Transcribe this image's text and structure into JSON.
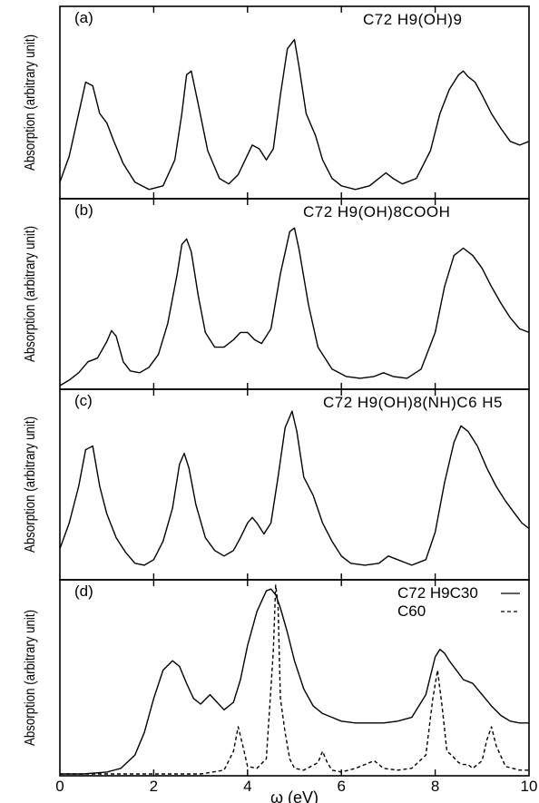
{
  "chart_data": [
    {
      "panel": "(a)",
      "type": "line",
      "title": "C72 H9(OH)9",
      "ylabel": "Absorption (arbitrary unit)",
      "xlim": [
        0,
        10
      ],
      "ylim": [
        0,
        1
      ],
      "series": [
        {
          "style": "solid",
          "x": [
            0.0,
            0.2,
            0.4,
            0.55,
            0.7,
            0.85,
            1.0,
            1.15,
            1.35,
            1.6,
            1.9,
            2.2,
            2.45,
            2.6,
            2.7,
            2.8,
            2.95,
            3.15,
            3.4,
            3.6,
            3.8,
            3.95,
            4.1,
            4.25,
            4.4,
            4.55,
            4.7,
            4.85,
            5.0,
            5.1,
            5.25,
            5.45,
            5.6,
            5.8,
            6.0,
            6.3,
            6.6,
            6.8,
            6.95,
            7.1,
            7.3,
            7.6,
            7.9,
            8.1,
            8.3,
            8.5,
            8.6,
            8.7,
            8.85,
            9.0,
            9.2,
            9.4,
            9.6,
            9.8,
            10.0
          ],
          "y": [
            0.08,
            0.22,
            0.45,
            0.62,
            0.6,
            0.45,
            0.4,
            0.3,
            0.18,
            0.08,
            0.04,
            0.06,
            0.2,
            0.45,
            0.66,
            0.68,
            0.5,
            0.25,
            0.1,
            0.07,
            0.12,
            0.2,
            0.28,
            0.26,
            0.2,
            0.26,
            0.55,
            0.8,
            0.85,
            0.7,
            0.45,
            0.33,
            0.2,
            0.1,
            0.06,
            0.04,
            0.06,
            0.1,
            0.13,
            0.1,
            0.07,
            0.1,
            0.25,
            0.45,
            0.58,
            0.66,
            0.68,
            0.65,
            0.62,
            0.55,
            0.45,
            0.37,
            0.3,
            0.28,
            0.3
          ]
        }
      ]
    },
    {
      "panel": "(b)",
      "type": "line",
      "title": "C72 H9(OH)8COOH",
      "ylabel": "Absorption (arbitrary unit)",
      "xlim": [
        0,
        10
      ],
      "ylim": [
        0,
        1
      ],
      "series": [
        {
          "style": "solid",
          "x": [
            0.0,
            0.2,
            0.4,
            0.6,
            0.8,
            1.0,
            1.1,
            1.2,
            1.35,
            1.5,
            1.7,
            1.9,
            2.1,
            2.3,
            2.5,
            2.6,
            2.7,
            2.8,
            2.95,
            3.1,
            3.3,
            3.5,
            3.7,
            3.85,
            4.0,
            4.15,
            4.3,
            4.5,
            4.7,
            4.9,
            5.0,
            5.1,
            5.3,
            5.5,
            5.8,
            6.1,
            6.4,
            6.7,
            6.9,
            7.1,
            7.4,
            7.7,
            8.0,
            8.2,
            8.4,
            8.6,
            8.8,
            9.0,
            9.2,
            9.4,
            9.6,
            9.8,
            10.0
          ],
          "y": [
            0.01,
            0.04,
            0.08,
            0.14,
            0.16,
            0.25,
            0.31,
            0.28,
            0.14,
            0.09,
            0.08,
            0.11,
            0.18,
            0.35,
            0.62,
            0.78,
            0.81,
            0.74,
            0.5,
            0.3,
            0.22,
            0.22,
            0.26,
            0.3,
            0.3,
            0.26,
            0.24,
            0.32,
            0.62,
            0.85,
            0.87,
            0.75,
            0.45,
            0.22,
            0.1,
            0.06,
            0.05,
            0.06,
            0.08,
            0.06,
            0.05,
            0.1,
            0.3,
            0.55,
            0.72,
            0.76,
            0.72,
            0.65,
            0.55,
            0.46,
            0.38,
            0.32,
            0.3
          ]
        }
      ]
    },
    {
      "panel": "(c)",
      "type": "line",
      "title": "C72 H9(OH)8(NH)C6 H5",
      "ylabel": "Absorption (arbitrary unit)",
      "xlim": [
        0,
        10
      ],
      "ylim": [
        0,
        1
      ],
      "series": [
        {
          "style": "solid",
          "x": [
            0.0,
            0.2,
            0.4,
            0.55,
            0.7,
            0.85,
            1.0,
            1.2,
            1.4,
            1.6,
            1.8,
            2.0,
            2.2,
            2.4,
            2.55,
            2.65,
            2.75,
            2.9,
            3.1,
            3.3,
            3.5,
            3.7,
            3.85,
            4.0,
            4.1,
            4.2,
            4.35,
            4.5,
            4.65,
            4.8,
            4.95,
            5.05,
            5.2,
            5.4,
            5.6,
            5.8,
            6.0,
            6.2,
            6.5,
            6.8,
            7.0,
            7.2,
            7.5,
            7.8,
            8.0,
            8.2,
            8.4,
            8.55,
            8.7,
            8.9,
            9.1,
            9.3,
            9.5,
            9.7,
            9.85,
            10.0
          ],
          "y": [
            0.16,
            0.3,
            0.5,
            0.7,
            0.72,
            0.5,
            0.35,
            0.22,
            0.14,
            0.08,
            0.07,
            0.1,
            0.2,
            0.38,
            0.62,
            0.68,
            0.6,
            0.4,
            0.22,
            0.15,
            0.12,
            0.15,
            0.22,
            0.3,
            0.33,
            0.3,
            0.24,
            0.3,
            0.55,
            0.82,
            0.91,
            0.8,
            0.55,
            0.45,
            0.3,
            0.2,
            0.12,
            0.08,
            0.07,
            0.08,
            0.12,
            0.1,
            0.07,
            0.1,
            0.25,
            0.52,
            0.74,
            0.83,
            0.8,
            0.72,
            0.6,
            0.5,
            0.42,
            0.35,
            0.3,
            0.27
          ]
        }
      ]
    },
    {
      "panel": "(d)",
      "type": "line",
      "title": "",
      "ylabel": "Absorption (arbitrary unit)",
      "xlabel": "ω (eV)",
      "xlim": [
        0,
        10
      ],
      "ylim": [
        0,
        1
      ],
      "xticks": [
        0,
        2,
        4,
        6,
        8,
        10
      ],
      "legend_position": "top-right",
      "series": [
        {
          "name": "C72 H9C30",
          "style": "solid",
          "x": [
            0.0,
            0.5,
            1.0,
            1.3,
            1.6,
            1.8,
            2.0,
            2.2,
            2.4,
            2.55,
            2.7,
            2.85,
            3.0,
            3.2,
            3.35,
            3.5,
            3.7,
            3.85,
            4.0,
            4.2,
            4.4,
            4.5,
            4.6,
            4.7,
            4.85,
            5.0,
            5.2,
            5.4,
            5.6,
            5.8,
            6.0,
            6.3,
            6.6,
            6.9,
            7.2,
            7.5,
            7.8,
            8.0,
            8.1,
            8.2,
            8.3,
            8.45,
            8.6,
            8.8,
            9.0,
            9.2,
            9.4,
            9.6,
            9.8,
            10.0
          ],
          "y": [
            0.0,
            0.0,
            0.01,
            0.03,
            0.1,
            0.22,
            0.4,
            0.55,
            0.6,
            0.57,
            0.48,
            0.4,
            0.37,
            0.42,
            0.38,
            0.34,
            0.38,
            0.5,
            0.68,
            0.86,
            0.97,
            0.98,
            0.95,
            0.88,
            0.75,
            0.6,
            0.45,
            0.36,
            0.32,
            0.3,
            0.28,
            0.27,
            0.27,
            0.27,
            0.28,
            0.3,
            0.42,
            0.62,
            0.66,
            0.64,
            0.6,
            0.55,
            0.5,
            0.48,
            0.42,
            0.36,
            0.31,
            0.28,
            0.27,
            0.27
          ]
        },
        {
          "name": "C60",
          "style": "dashed",
          "x": [
            0.0,
            1.0,
            2.0,
            3.0,
            3.5,
            3.7,
            3.8,
            3.9,
            4.0,
            4.2,
            4.4,
            4.55,
            4.6,
            4.65,
            4.7,
            4.8,
            4.9,
            5.0,
            5.2,
            5.5,
            5.6,
            5.7,
            5.8,
            6.0,
            6.3,
            6.5,
            6.7,
            6.9,
            7.2,
            7.5,
            7.8,
            7.95,
            8.05,
            8.15,
            8.25,
            8.35,
            8.5,
            8.6,
            8.7,
            8.8,
            9.0,
            9.1,
            9.2,
            9.3,
            9.5,
            9.8,
            10.0
          ],
          "y": [
            0.0,
            0.0,
            0.0,
            0.0,
            0.02,
            0.12,
            0.25,
            0.15,
            0.04,
            0.03,
            0.08,
            0.65,
            1.0,
            0.9,
            0.4,
            0.22,
            0.08,
            0.03,
            0.02,
            0.06,
            0.12,
            0.06,
            0.02,
            0.01,
            0.03,
            0.05,
            0.07,
            0.03,
            0.02,
            0.03,
            0.1,
            0.4,
            0.55,
            0.35,
            0.12,
            0.1,
            0.06,
            0.05,
            0.05,
            0.03,
            0.07,
            0.18,
            0.25,
            0.15,
            0.04,
            0.02,
            0.02
          ]
        }
      ]
    }
  ]
}
